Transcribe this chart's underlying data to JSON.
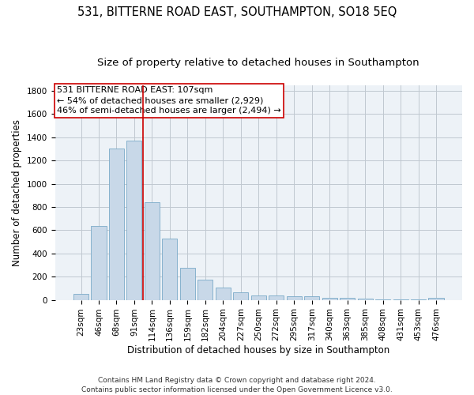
{
  "title": "531, BITTERNE ROAD EAST, SOUTHAMPTON, SO18 5EQ",
  "subtitle": "Size of property relative to detached houses in Southampton",
  "xlabel": "Distribution of detached houses by size in Southampton",
  "ylabel": "Number of detached properties",
  "bar_color": "#c8d8e8",
  "bar_edge_color": "#7aaac8",
  "bar_categories": [
    "23sqm",
    "46sqm",
    "68sqm",
    "91sqm",
    "114sqm",
    "136sqm",
    "159sqm",
    "182sqm",
    "204sqm",
    "227sqm",
    "250sqm",
    "272sqm",
    "295sqm",
    "317sqm",
    "340sqm",
    "363sqm",
    "385sqm",
    "408sqm",
    "431sqm",
    "453sqm",
    "476sqm"
  ],
  "bar_values": [
    50,
    635,
    1305,
    1370,
    840,
    525,
    275,
    175,
    105,
    65,
    40,
    40,
    30,
    30,
    20,
    15,
    10,
    5,
    5,
    5,
    15
  ],
  "vline_x_index": 4,
  "vline_color": "#cc0000",
  "annotation_text": "531 BITTERNE ROAD EAST: 107sqm\n← 54% of detached houses are smaller (2,929)\n46% of semi-detached houses are larger (2,494) →",
  "ylim": [
    0,
    1850
  ],
  "yticks": [
    0,
    200,
    400,
    600,
    800,
    1000,
    1200,
    1400,
    1600,
    1800
  ],
  "footer": "Contains HM Land Registry data © Crown copyright and database right 2024.\nContains public sector information licensed under the Open Government Licence v3.0.",
  "bg_color": "#edf2f7",
  "grid_color": "#c0c8d0",
  "title_fontsize": 10.5,
  "subtitle_fontsize": 9.5,
  "xlabel_fontsize": 8.5,
  "ylabel_fontsize": 8.5,
  "tick_fontsize": 7.5,
  "annotation_fontsize": 8,
  "footer_fontsize": 6.5
}
